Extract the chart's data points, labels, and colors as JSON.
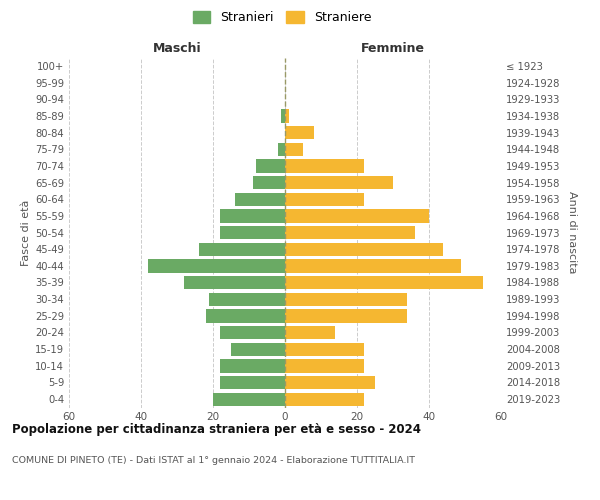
{
  "age_groups_bottom_to_top": [
    "0-4",
    "5-9",
    "10-14",
    "15-19",
    "20-24",
    "25-29",
    "30-34",
    "35-39",
    "40-44",
    "45-49",
    "50-54",
    "55-59",
    "60-64",
    "65-69",
    "70-74",
    "75-79",
    "80-84",
    "85-89",
    "90-94",
    "95-99",
    "100+"
  ],
  "birth_years_bottom_to_top": [
    "2019-2023",
    "2014-2018",
    "2009-2013",
    "2004-2008",
    "1999-2003",
    "1994-1998",
    "1989-1993",
    "1984-1988",
    "1979-1983",
    "1974-1978",
    "1969-1973",
    "1964-1968",
    "1959-1963",
    "1954-1958",
    "1949-1953",
    "1944-1948",
    "1939-1943",
    "1934-1938",
    "1929-1933",
    "1924-1928",
    "≤ 1923"
  ],
  "males_bottom_to_top": [
    20,
    18,
    18,
    15,
    18,
    22,
    21,
    28,
    38,
    24,
    18,
    18,
    14,
    9,
    8,
    2,
    0,
    1,
    0,
    0,
    0
  ],
  "females_bottom_to_top": [
    22,
    25,
    22,
    22,
    14,
    34,
    34,
    55,
    49,
    44,
    36,
    40,
    22,
    30,
    22,
    5,
    8,
    1,
    0,
    0,
    0
  ],
  "male_color": "#6aaa64",
  "female_color": "#f5b731",
  "background_color": "#ffffff",
  "grid_color": "#cccccc",
  "title": "Popolazione per cittadinanza straniera per età e sesso - 2024",
  "subtitle": "COMUNE DI PINETO (TE) - Dati ISTAT al 1° gennaio 2024 - Elaborazione TUTTITALIA.IT",
  "xlabel_left": "Maschi",
  "xlabel_right": "Femmine",
  "ylabel_left": "Fasce di età",
  "ylabel_right": "Anni di nascita",
  "legend_male": "Stranieri",
  "legend_female": "Straniere",
  "xlim": 60,
  "bar_height": 0.8
}
